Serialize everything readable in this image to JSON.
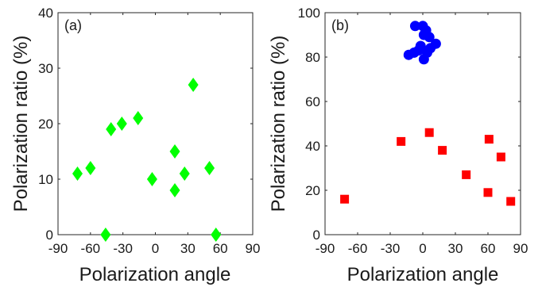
{
  "chart_data": [
    {
      "type": "scatter",
      "panel_label": "(a)",
      "xlabel": "Polarization angle",
      "ylabel": "Polarization ratio (%)",
      "xlim": [
        -90,
        90
      ],
      "ylim": [
        0,
        40
      ],
      "xticks": [
        -90,
        -60,
        -30,
        0,
        30,
        60,
        90
      ],
      "yticks": [
        0,
        10,
        20,
        30,
        40
      ],
      "xtick_labels": [
        "-90",
        "-60",
        "-30",
        "0",
        "30",
        "60",
        "90"
      ],
      "ytick_labels": [
        "0",
        "10",
        "20",
        "30",
        "40"
      ],
      "grid": false,
      "series": [
        {
          "marker": "diamond",
          "color": "#00ff00",
          "points": [
            {
              "x": -72,
              "y": 11
            },
            {
              "x": -60,
              "y": 12
            },
            {
              "x": -46,
              "y": 0
            },
            {
              "x": -41,
              "y": 19
            },
            {
              "x": -31,
              "y": 20
            },
            {
              "x": -16,
              "y": 21
            },
            {
              "x": -3,
              "y": 10
            },
            {
              "x": 18,
              "y": 15
            },
            {
              "x": 18,
              "y": 8
            },
            {
              "x": 27,
              "y": 11
            },
            {
              "x": 35,
              "y": 27
            },
            {
              "x": 50,
              "y": 12
            },
            {
              "x": 56,
              "y": 0
            }
          ]
        }
      ]
    },
    {
      "type": "scatter",
      "panel_label": "(b)",
      "xlabel": "Polarization angle",
      "ylabel": "Polarization ratio (%)",
      "xlim": [
        -90,
        90
      ],
      "ylim": [
        0,
        100
      ],
      "xticks": [
        -90,
        -60,
        -30,
        0,
        30,
        60,
        90
      ],
      "yticks": [
        0,
        20,
        40,
        60,
        80,
        100
      ],
      "xtick_labels": [
        "-90",
        "-60",
        "-30",
        "0",
        "30",
        "60",
        "90"
      ],
      "ytick_labels": [
        "0",
        "20",
        "40",
        "60",
        "80",
        "100"
      ],
      "grid": false,
      "series": [
        {
          "marker": "circle",
          "color": "#0000ff",
          "points": [
            {
              "x": -13,
              "y": 81
            },
            {
              "x": -8,
              "y": 82
            },
            {
              "x": -7,
              "y": 94
            },
            {
              "x": -4,
              "y": 83
            },
            {
              "x": -2,
              "y": 85
            },
            {
              "x": 0,
              "y": 94
            },
            {
              "x": 1,
              "y": 79
            },
            {
              "x": 1,
              "y": 90
            },
            {
              "x": 3,
              "y": 92
            },
            {
              "x": 4,
              "y": 82
            },
            {
              "x": 6,
              "y": 89
            },
            {
              "x": 7,
              "y": 84
            },
            {
              "x": 12,
              "y": 86
            }
          ]
        },
        {
          "marker": "square",
          "color": "#ff0000",
          "points": [
            {
              "x": -72,
              "y": 16
            },
            {
              "x": -20,
              "y": 42
            },
            {
              "x": 6,
              "y": 46
            },
            {
              "x": 18,
              "y": 38
            },
            {
              "x": 40,
              "y": 27
            },
            {
              "x": 60,
              "y": 19
            },
            {
              "x": 61,
              "y": 43
            },
            {
              "x": 72,
              "y": 35
            },
            {
              "x": 81,
              "y": 15
            }
          ]
        }
      ]
    }
  ]
}
